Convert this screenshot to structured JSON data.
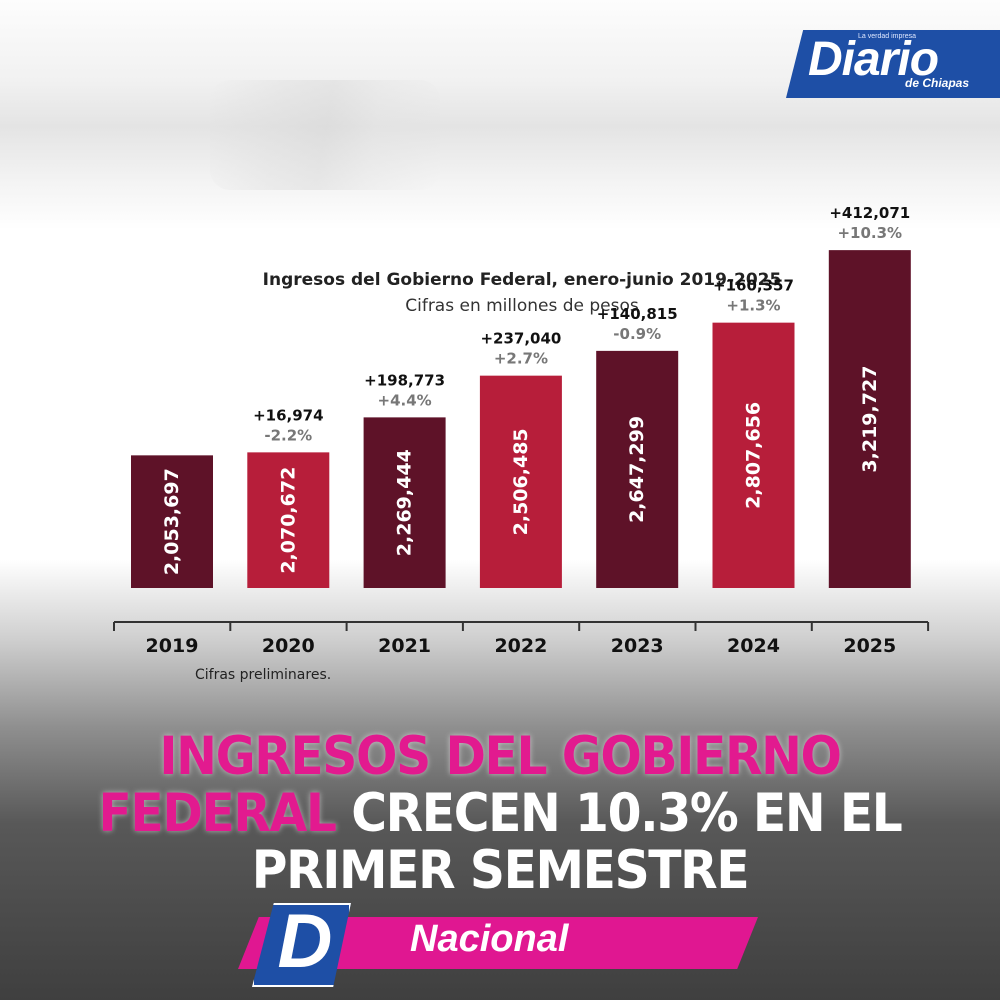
{
  "brand": {
    "tagline": "La verdad impresa",
    "name": "Diario",
    "sub": "de Chiapas"
  },
  "chart_data": {
    "type": "bar",
    "title": "Ingresos del Gobierno Federal, enero-junio 2019-2025",
    "subtitle": "Cifras en millones de pesos",
    "categories": [
      "2019",
      "2020",
      "2021",
      "2022",
      "2023",
      "2024",
      "2025"
    ],
    "values": [
      2053697,
      2070672,
      2269444,
      2506485,
      2647299,
      2807656,
      3219727
    ],
    "value_labels": [
      "2,053,697",
      "2,070,672",
      "2,269,444",
      "2,506,485",
      "2,647,299",
      "2,807,656",
      "3,219,727"
    ],
    "change_abs": [
      "",
      "+16,974",
      "+198,773",
      "+237,040",
      "+140,815",
      "+160,357",
      "+412,071"
    ],
    "change_pct": [
      "",
      "-2.2%",
      "+4.4%",
      "+2.7%",
      "-0.9%",
      "+1.3%",
      "+10.3%"
    ],
    "colors": [
      "#5e1228",
      "#b71e3a",
      "#5e1228",
      "#b71e3a",
      "#5e1228",
      "#b71e3a",
      "#5e1228"
    ],
    "note": "Cifras preliminares."
  },
  "headline": {
    "pink": "INGRESOS DEL GOBIERNO FEDERAL",
    "white": "CRECEN 10.3% EN EL PRIMER SEMESTRE"
  },
  "section": {
    "icon_letter": "D",
    "label": "Nacional"
  }
}
